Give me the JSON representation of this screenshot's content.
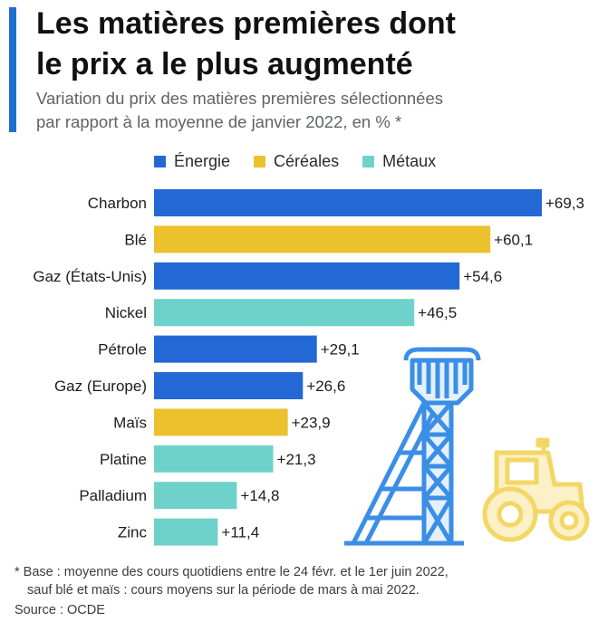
{
  "header": {
    "title_line1": "Les matières premières dont",
    "title_line2": "le prix a le plus augmenté",
    "subtitle_line1": "Variation du prix des matières premières sélectionnées",
    "subtitle_line2": "par rapport à la moyenne de janvier 2022, en % *"
  },
  "legend": [
    {
      "label": "Énergie",
      "color": "#2468d6"
    },
    {
      "label": "Céréales",
      "color": "#ecc12e"
    },
    {
      "label": "Métaux",
      "color": "#6fd2ca"
    }
  ],
  "chart_data": {
    "type": "bar",
    "orientation": "horizontal",
    "title": "Les matières premières dont le prix a le plus augmenté",
    "subtitle": "Variation du prix des matières premières sélectionnées par rapport à la moyenne de janvier 2022, en % *",
    "xlim": [
      0,
      69.3
    ],
    "grid": false,
    "legend_placement": "top",
    "categories": [
      "Charbon",
      "Blé",
      "Gaz (États-Unis)",
      "Nickel",
      "Pétrole",
      "Gaz (Europe)",
      "Maïs",
      "Platine",
      "Palladium",
      "Zinc"
    ],
    "values": [
      69.3,
      60.1,
      54.6,
      46.5,
      29.1,
      26.6,
      23.9,
      21.3,
      14.8,
      11.4
    ],
    "value_labels": [
      "+69,3",
      "+60,1",
      "+54,6",
      "+46,5",
      "+29,1",
      "+26,6",
      "+23,9",
      "+21,3",
      "+14,8",
      "+11,4"
    ],
    "groups": [
      "Énergie",
      "Céréales",
      "Énergie",
      "Métaux",
      "Énergie",
      "Énergie",
      "Céréales",
      "Métaux",
      "Métaux",
      "Métaux"
    ]
  },
  "illustration": {
    "mine_icon": "mine-headframe-icon",
    "tractor_icon": "tractor-icon",
    "mine_color": "#3b8ee6",
    "tractor_color": "#f3d766"
  },
  "footer": {
    "note_line1": "* Base : moyenne des cours quotidiens entre le 24 févr. et le 1er juin 2022,",
    "note_line2": "sauf blé et maïs : cours moyens sur la période de mars à mai 2022.",
    "source": "Source : OCDE"
  }
}
